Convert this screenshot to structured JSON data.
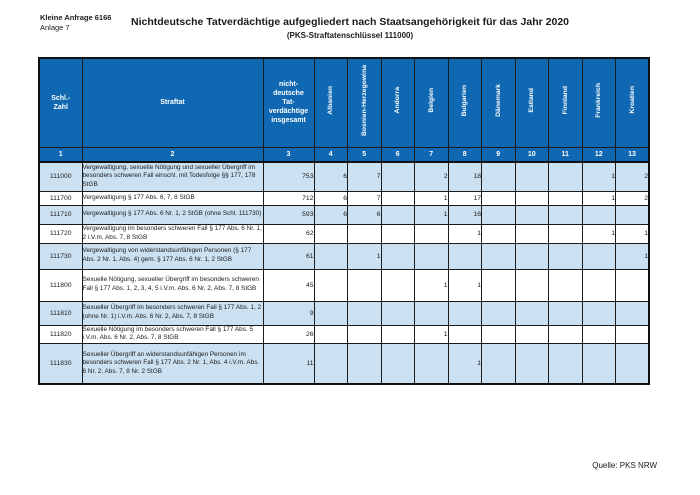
{
  "meta": {
    "ref_line1": "Kleine Anfrage 6166",
    "ref_line2": "Anlage 7"
  },
  "header": {
    "title": "Nichtdeutsche Tatverdächtige aufgegliedert nach Staatsangehörigkeit für das Jahr 2020",
    "subtitle": "(PKS-Straftatenschlüssel 111000)"
  },
  "colors": {
    "header_blue": "#1068B2",
    "row_alt_blue": "#CBE0F1",
    "border": "#1b1b1b"
  },
  "table": {
    "columns": {
      "schl_zahl": "Schl.-\nZahl",
      "straftat": "Straftat",
      "insgesamt": "nicht-\ndeutsche\nTat-\nverdächtige\ninsgesamt",
      "countries": [
        "Albanien",
        "Bosnien-Herzegowina",
        "Andorra",
        "Belgien",
        "Bulgarien",
        "Dänemark",
        "Estland",
        "Finnland",
        "Frankreich",
        "Kroatien"
      ]
    },
    "column_numbers": [
      "1",
      "2",
      "3",
      "4",
      "5",
      "6",
      "7",
      "8",
      "9",
      "10",
      "11",
      "12",
      "13"
    ],
    "rows": [
      {
        "schl": "111000",
        "straftat": "Vergewaltigung, sexuelle Nötigung und sexueller Übergriff im besonders schweren Fall einschl. mit Todesfolge §§ 177, 178 StGB",
        "insgesamt": "753",
        "values": [
          "6",
          "7",
          "",
          "2",
          "18",
          "",
          "",
          "",
          "1",
          "2"
        ]
      },
      {
        "schl": "111700",
        "straftat": "Vergewaltigung § 177 Abs. 6, 7, 8 StGB",
        "insgesamt": "712",
        "values": [
          "6",
          "7",
          "",
          "1",
          "17",
          "",
          "",
          "",
          "1",
          "2"
        ]
      },
      {
        "schl": "111710",
        "straftat": "Vergewaltigung § 177 Abs. 6 Nr. 1, 2 StGB (ohne Schl. 111730)",
        "insgesamt": "593",
        "values": [
          "6",
          "6",
          "",
          "1",
          "16",
          "",
          "",
          "",
          "",
          ""
        ]
      },
      {
        "schl": "111720",
        "straftat": "Vergewaltigung im besonders schweren Fall § 177 Abs. 6 Nr. 1, 2 i.V.m. Abs. 7, 8 StGB",
        "insgesamt": "62",
        "values": [
          "",
          "",
          "",
          "",
          "1",
          "",
          "",
          "",
          "1",
          "1"
        ]
      },
      {
        "schl": "111730",
        "straftat": "Vergewaltigung von widerstandsunfähigen Personen (§ 177 Abs. 2 Nr. 1, Abs. 4) gem. § 177 Abs. 6 Nr. 1, 2 StGB",
        "insgesamt": "61",
        "values": [
          "",
          "1",
          "",
          "",
          "",
          "",
          "",
          "",
          "",
          "1"
        ]
      },
      {
        "schl": "111800",
        "straftat": "Sexuelle Nötigung, sexueller Übergriff im besonders schweren Fall § 177 Abs. 1, 2, 3, 4, 5 i.V.m. Abs. 6 Nr. 2, Abs. 7, 8 StGB",
        "insgesamt": "45",
        "values": [
          "",
          "",
          "",
          "1",
          "1",
          "",
          "",
          "",
          "",
          ""
        ]
      },
      {
        "schl": "111810",
        "straftat": "Sexueller Übergriff im besonders schweren Fall § 177 Abs. 1, 2 (ohne Nr. 1) i.V.m. Abs. 6 Nr. 2, Abs. 7, 8 StGB",
        "insgesamt": "9",
        "values": [
          "",
          "",
          "",
          "",
          "",
          "",
          "",
          "",
          "",
          ""
        ]
      },
      {
        "schl": "111820",
        "straftat": "Sexuelle Nötigung im besonders schweren Fall § 177 Abs. 5 i.V.m. Abs. 6 Nr. 2, Abs. 7, 8 StGB",
        "insgesamt": "26",
        "values": [
          "",
          "",
          "",
          "1",
          "",
          "",
          "",
          "",
          "",
          ""
        ]
      },
      {
        "schl": "111830",
        "straftat": "Sexueller Übergriff an widerstandsunfähigen Personen im besonders schweren Fall § 177 Abs. 2 Nr. 1, Abs. 4 i.V.m. Abs. 6 Nr. 2, Abs. 7, 8 Nr. 2 StGB",
        "insgesamt": "11",
        "values": [
          "",
          "",
          "",
          "",
          "1",
          "",
          "",
          "",
          "",
          ""
        ]
      }
    ]
  },
  "footer": {
    "source": "Quelle: PKS NRW"
  }
}
